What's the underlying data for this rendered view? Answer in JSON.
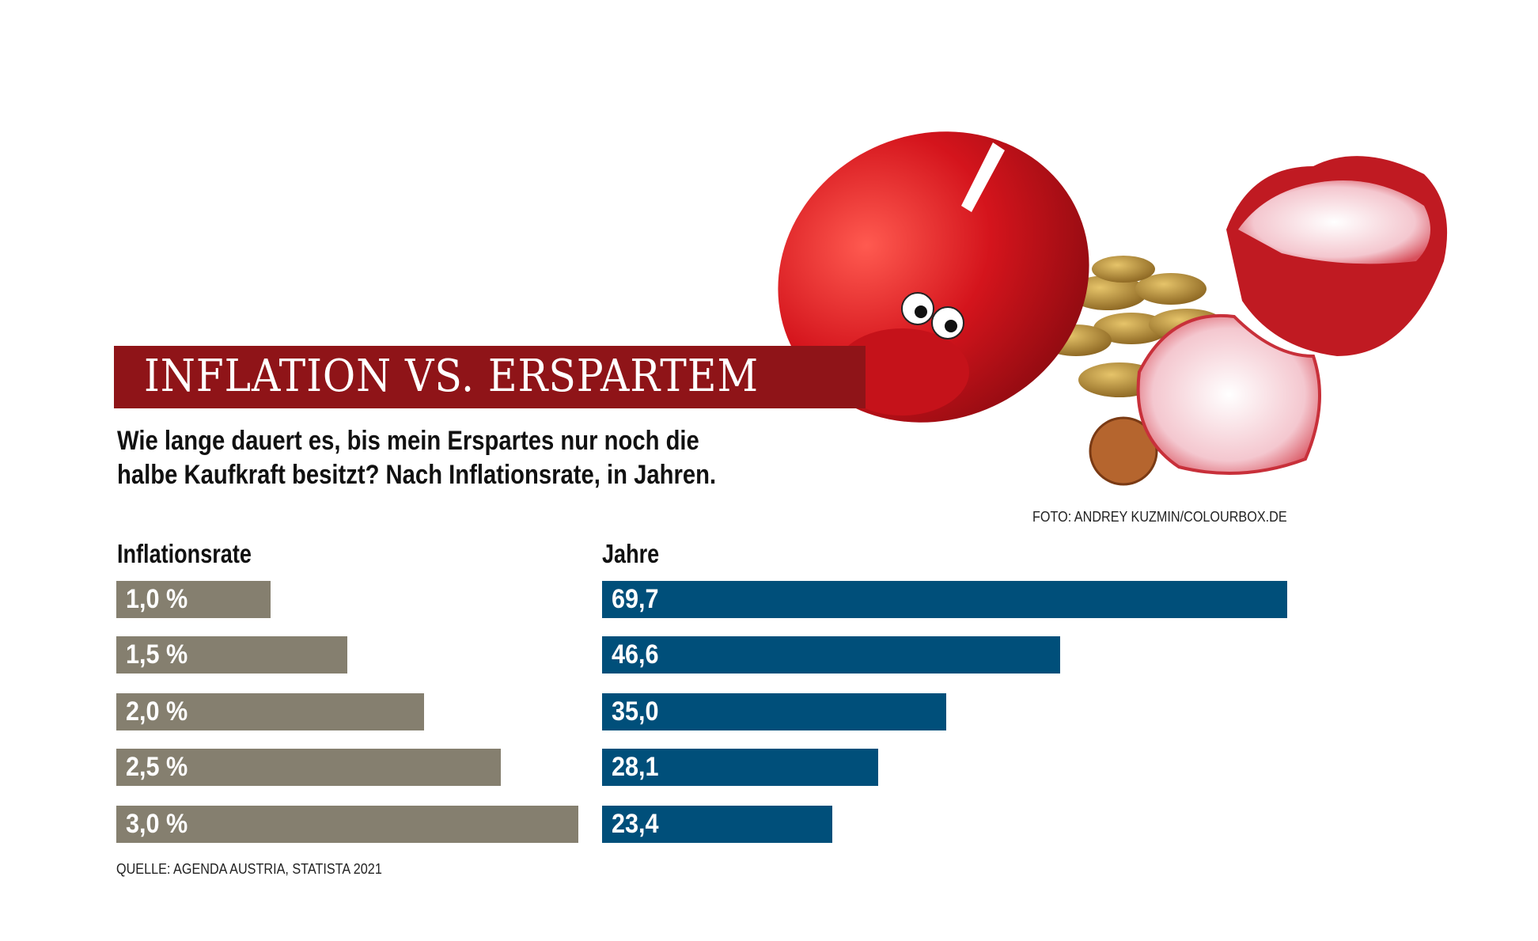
{
  "title": "INFLATION VS. ERSPARTEM",
  "subtitle_lines": [
    "Wie lange dauert es, bis mein Erspartes nur noch die",
    "halbe Kaufkraft besitzt? Nach Inflationsrate, in Jahren."
  ],
  "photo_credit": "FOTO: ANDREY KUZMIN/COLOURBOX.DE",
  "source": "QUELLE: AGENDA AUSTRIA, STATISTA 2021",
  "colors": {
    "title_band": "#8f1418",
    "inflation_bars": "#857f6f",
    "years_bars": "#004f7a"
  },
  "photo_icon": "broken-piggy-bank-with-coins",
  "chart_data": {
    "type": "bar",
    "orientation": "horizontal",
    "columns": [
      {
        "header": "Inflationsrate",
        "labels": [
          "1,0 %",
          "1,5 %",
          "2,0 %",
          "2,5 %",
          "3,0 %"
        ],
        "values": [
          1.0,
          1.5,
          2.0,
          2.5,
          3.0
        ]
      },
      {
        "header": "Jahre",
        "labels": [
          "69,7",
          "46,6",
          "35,0",
          "28,1",
          "23,4"
        ],
        "values": [
          69.7,
          46.6,
          35.0,
          28.1,
          23.4
        ]
      }
    ],
    "grid": false,
    "legend": "none"
  }
}
